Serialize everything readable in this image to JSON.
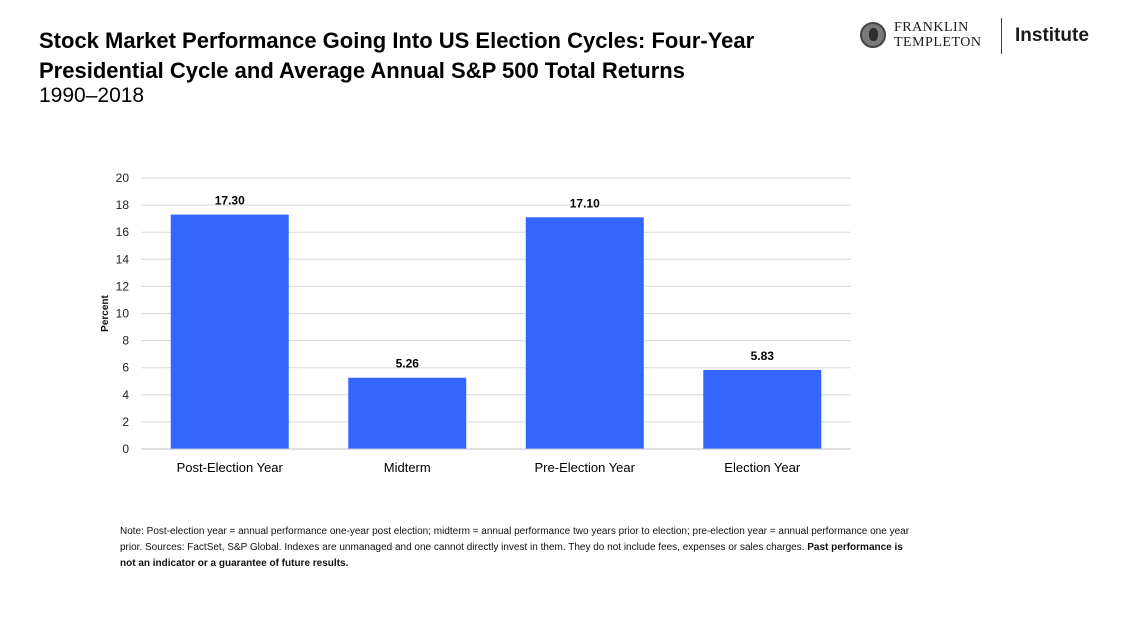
{
  "header": {
    "title": "Stock Market Performance Going Into US Election Cycles: Four-Year Presidential Cycle and Average Annual S&P 500 Total Returns",
    "subtitle": "1990–2018"
  },
  "logo": {
    "brand_line1": "FRANKLIN",
    "brand_line2": "TEMPLETON",
    "institute": "Institute"
  },
  "chart_data": {
    "type": "bar",
    "categories": [
      "Post-Election Year",
      "Midterm",
      "Pre-Election Year",
      "Election Year"
    ],
    "values": [
      17.3,
      5.26,
      17.1,
      5.83
    ],
    "data_labels": [
      "17.30",
      "5.26",
      "17.10",
      "5.83"
    ],
    "ylabel": "Percent",
    "ylim": [
      0,
      20
    ],
    "yticks": [
      0,
      2,
      4,
      6,
      8,
      10,
      12,
      14,
      16,
      18,
      20
    ],
    "grid": true,
    "bar_color": "#3366ff"
  },
  "note": {
    "text": "Note: Post-election year = annual performance one-year post election; midterm = annual performance two years prior to election; pre-election year = annual performance one year prior. Sources: FactSet, S&P Global. Indexes are unmanaged and one cannot directly invest in them. They do not include fees, expenses or sales charges.",
    "bold_text": "Past performance is not an indicator or a guarantee of future results."
  }
}
